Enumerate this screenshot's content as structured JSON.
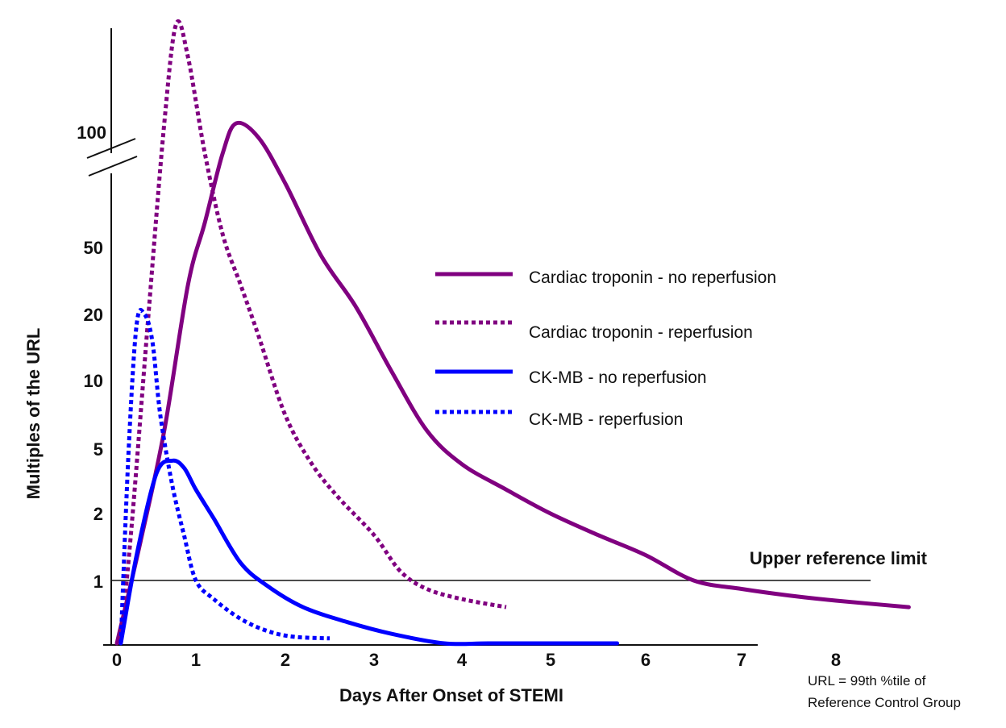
{
  "chart_data": {
    "type": "line",
    "xlabel": "Days After Onset of STEMI",
    "ylabel": "Multiples of the URL",
    "xlim": [
      0,
      8.8
    ],
    "ylim_note": "log-like scale with axis break above 100",
    "y_ticks": [
      "1",
      "2",
      "5",
      "10",
      "20",
      "50",
      "100"
    ],
    "x_ticks": [
      "0",
      "1",
      "2",
      "3",
      "4",
      "5",
      "6",
      "7",
      "8"
    ],
    "axis_break": true,
    "reference_line": {
      "value": 1,
      "label": "Upper reference limit"
    },
    "footnote": [
      "URL = 99th %tile of",
      "Reference Control Group"
    ],
    "legend_position": "center-right",
    "series": [
      {
        "name": "Cardiac troponin - no reperfusion",
        "color": "#800080",
        "style": "solid",
        "x": [
          0.0,
          0.3,
          0.6,
          0.9,
          1.1,
          1.3,
          1.45,
          1.7,
          2.0,
          2.4,
          2.8,
          3.2,
          3.6,
          4.0,
          4.5,
          5.0,
          5.5,
          6.0,
          6.5,
          7.0,
          7.5,
          8.0,
          8.8
        ],
        "y": [
          0.3,
          1.5,
          6,
          30,
          60,
          100,
          120,
          110,
          80,
          45,
          22,
          11,
          6,
          4,
          2.8,
          2.0,
          1.6,
          1.3,
          1.0,
          0.85,
          0.75,
          0.68,
          0.6
        ]
      },
      {
        "name": "Cardiac troponin - reperfusion",
        "color": "#800080",
        "style": "dotted",
        "x": [
          0.05,
          0.2,
          0.4,
          0.6,
          0.75,
          0.9,
          1.1,
          1.3,
          1.5,
          1.7,
          2.0,
          2.3,
          2.6,
          3.0,
          3.3,
          3.6,
          4.0,
          4.5
        ],
        "y": [
          0.3,
          2,
          20,
          120,
          220,
          180,
          100,
          55,
          30,
          16,
          7,
          4,
          2.5,
          1.6,
          1.1,
          0.85,
          0.7,
          0.6
        ]
      },
      {
        "name": "CK-MB - no reperfusion",
        "color": "#0000ff",
        "style": "solid",
        "x": [
          0.05,
          0.25,
          0.5,
          0.7,
          0.85,
          1.0,
          1.2,
          1.5,
          1.8,
          2.2,
          2.7,
          3.2,
          3.8,
          4.3,
          5.0,
          5.7
        ],
        "y": [
          0.3,
          1.3,
          3.5,
          4.2,
          3.8,
          2.8,
          1.9,
          1.2,
          0.9,
          0.6,
          0.45,
          0.36,
          0.3,
          0.28,
          0.27,
          0.26
        ]
      },
      {
        "name": "CK-MB - reperfusion",
        "color": "#0000ff",
        "style": "dotted",
        "x": [
          0.05,
          0.15,
          0.25,
          0.35,
          0.45,
          0.55,
          0.7,
          0.85,
          1.0,
          1.2,
          1.5,
          1.8,
          2.1,
          2.5
        ],
        "y": [
          0.3,
          5,
          18,
          20,
          15,
          7,
          3,
          1.6,
          1.0,
          0.7,
          0.48,
          0.38,
          0.34,
          0.33
        ]
      }
    ]
  }
}
